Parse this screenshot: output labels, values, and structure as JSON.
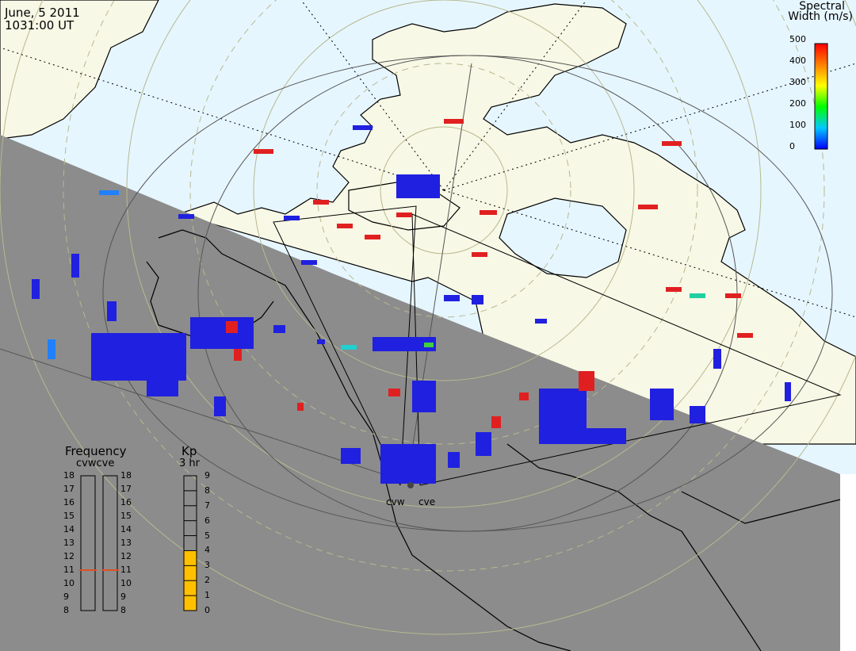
{
  "title": {
    "date": "June, 5 2011",
    "time": "1031:00 UT"
  },
  "colorbar": {
    "title_line1": "Spectral",
    "title_line2": "Width (m/s)",
    "ticks": [
      "500",
      "400",
      "300",
      "200",
      "100",
      "0"
    ],
    "colors": [
      "#0000ff",
      "#00c8ff",
      "#00ff00",
      "#ffff00",
      "#ff8000",
      "#ff0000"
    ]
  },
  "radars": {
    "west": "cvw",
    "east": "cve"
  },
  "frequency": {
    "title": "Frequency",
    "subtitle": "cvwcve",
    "ticks": [
      "18",
      "17",
      "16",
      "15",
      "14",
      "13",
      "12",
      "11",
      "10",
      "9",
      "8"
    ],
    "cvw_value_mhz": 11,
    "cve_value_mhz": 11
  },
  "kp": {
    "title": "Kp",
    "subtitle": "3 hr",
    "ticks": [
      "9",
      "8",
      "7",
      "6",
      "5",
      "4",
      "3",
      "2",
      "1",
      "0"
    ],
    "value": 4
  },
  "colors": {
    "ocean_day": "#e6f6ff",
    "land_day": "#f8f8e6",
    "night": "#8c8c8c",
    "fill_color": "#ffc000",
    "freq_marker": "#e05020"
  }
}
